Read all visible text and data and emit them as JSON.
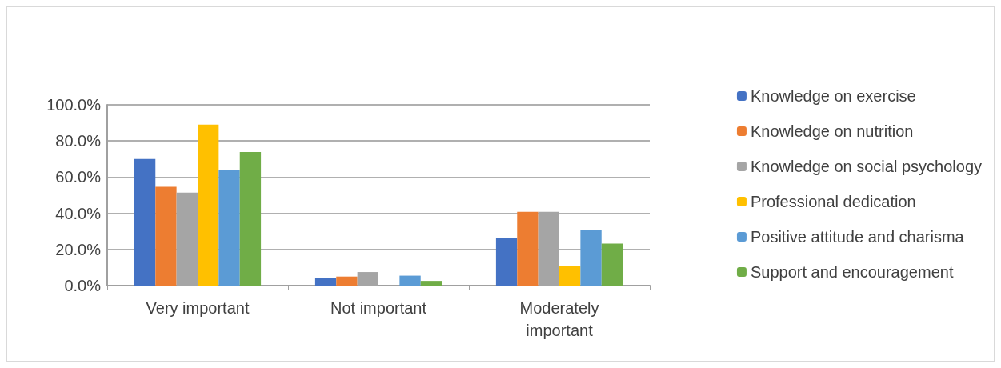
{
  "chart_data": {
    "type": "bar",
    "categories": [
      "Very important",
      "Not important",
      "Moderately\nimportant"
    ],
    "series": [
      {
        "name": "Knowledge on exercise",
        "color": "#4472c4",
        "values": [
          70,
          4.2,
          26.1
        ]
      },
      {
        "name": "Knowledge on nutrition",
        "color": "#ed7d31",
        "values": [
          54.7,
          5,
          40.8
        ]
      },
      {
        "name": "Knowledge on social psychology",
        "color": "#a5a5a5",
        "values": [
          51.4,
          7.5,
          40.8
        ]
      },
      {
        "name": "Professional dedication",
        "color": "#ffc000",
        "values": [
          89.1,
          0,
          10.9
        ]
      },
      {
        "name": "Positive attitude and charisma",
        "color": "#5b9bd5",
        "values": [
          63.7,
          5.5,
          31
        ]
      },
      {
        "name": "Support and encouragement",
        "color": "#70ad47",
        "values": [
          73.9,
          2.6,
          23.2
        ]
      }
    ],
    "ylim": [
      0,
      100
    ],
    "yticks": [
      {
        "value": 0,
        "label": "0.0%"
      },
      {
        "value": 20,
        "label": "20.0%"
      },
      {
        "value": 40,
        "label": "40.0%"
      },
      {
        "value": 60,
        "label": "60.0%"
      },
      {
        "value": 80,
        "label": "80.0%"
      },
      {
        "value": 100,
        "label": "100.0%"
      }
    ],
    "grid": "y",
    "legend": "right"
  }
}
